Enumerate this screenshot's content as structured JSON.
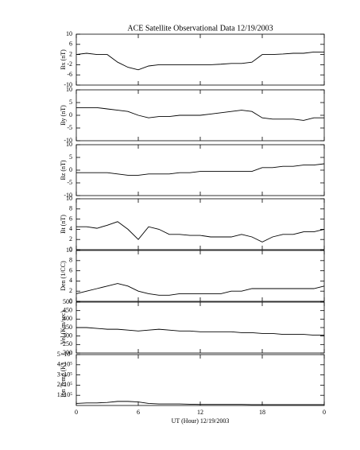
{
  "chart_data": [
    {
      "type": "line",
      "title": "ACE Satellite Observational Data   12/19/2003",
      "ylabel": "Bx (nT)",
      "x": [
        0,
        1,
        2,
        3,
        4,
        5,
        6,
        7,
        8,
        9,
        10,
        11,
        12,
        13,
        14,
        15,
        16,
        17,
        18,
        19,
        20,
        21,
        22,
        23,
        24
      ],
      "series": [
        {
          "color": "#000000",
          "values": [
            2,
            2.5,
            2,
            2,
            -1,
            -3,
            -4,
            -2.5,
            -2,
            -2,
            -2,
            -2,
            -2,
            -2,
            -1.8,
            -1.5,
            -1.5,
            -1,
            2,
            2,
            2.2,
            2.5,
            2.5,
            3,
            3
          ]
        }
      ],
      "ylim": [
        -10,
        10
      ],
      "yticks": [
        10,
        6,
        2,
        -2,
        -6,
        -10
      ],
      "xlim": [
        0,
        24
      ]
    },
    {
      "type": "line",
      "ylabel": "By (nT)",
      "x": [
        0,
        1,
        2,
        3,
        4,
        5,
        6,
        7,
        8,
        9,
        10,
        11,
        12,
        13,
        14,
        15,
        16,
        17,
        18,
        19,
        20,
        21,
        22,
        23,
        24
      ],
      "series": [
        {
          "color": "#000000",
          "values": [
            3,
            3,
            3,
            2.5,
            2,
            1.5,
            0,
            -1,
            -0.5,
            -0.5,
            0,
            0,
            0,
            0.5,
            1,
            1.5,
            2,
            1.5,
            -1,
            -1.5,
            -1.5,
            -1.5,
            -2,
            -1,
            -1
          ]
        }
      ],
      "ylim": [
        -10,
        10
      ],
      "yticks": [
        10,
        5,
        0,
        -5,
        -10
      ],
      "xlim": [
        0,
        24
      ]
    },
    {
      "type": "line",
      "ylabel": "Bz (nT)",
      "x": [
        0,
        1,
        2,
        3,
        4,
        5,
        6,
        7,
        8,
        9,
        10,
        11,
        12,
        13,
        14,
        15,
        16,
        17,
        18,
        19,
        20,
        21,
        22,
        23,
        24
      ],
      "series": [
        {
          "color": "#000000",
          "values": [
            -1,
            -1,
            -1,
            -1,
            -1.5,
            -2,
            -2,
            -1.5,
            -1.5,
            -1.5,
            -1,
            -1,
            -0.5,
            -0.5,
            -0.5,
            -0.5,
            -0.5,
            -0.5,
            1,
            1,
            1.5,
            1.5,
            2,
            2,
            2.5
          ]
        }
      ],
      "ylim": [
        -10,
        10
      ],
      "yticks": [
        10,
        5,
        0,
        -5,
        -10
      ],
      "xlim": [
        0,
        24
      ]
    },
    {
      "type": "line",
      "ylabel": "Bt (nT)",
      "x": [
        0,
        1,
        2,
        3,
        4,
        5,
        6,
        7,
        8,
        9,
        10,
        11,
        12,
        13,
        14,
        15,
        16,
        17,
        18,
        19,
        20,
        21,
        22,
        23,
        24
      ],
      "series": [
        {
          "color": "#000000",
          "values": [
            4.5,
            4.5,
            4.2,
            4.8,
            5.5,
            4,
            2,
            4.5,
            4,
            3,
            3,
            2.8,
            2.8,
            2.5,
            2.5,
            2.5,
            3,
            2.5,
            1.5,
            2.5,
            3,
            3,
            3.5,
            3.5,
            4
          ]
        }
      ],
      "ylim": [
        0,
        10
      ],
      "yticks": [
        10,
        8,
        6,
        4,
        2,
        0
      ],
      "xlim": [
        0,
        24
      ]
    },
    {
      "type": "line",
      "ylabel": "Den (1/CC)",
      "x": [
        0,
        1,
        2,
        3,
        4,
        5,
        6,
        7,
        8,
        9,
        10,
        11,
        12,
        13,
        14,
        15,
        16,
        17,
        18,
        19,
        20,
        21,
        22,
        23,
        24
      ],
      "series": [
        {
          "color": "#000000",
          "values": [
            1.5,
            2,
            2.5,
            3,
            3.5,
            3,
            2,
            1.5,
            1.2,
            1.2,
            1.5,
            1.5,
            1.5,
            1.5,
            1.5,
            2,
            2,
            2.5,
            2.5,
            2.5,
            2.5,
            2.5,
            2.5,
            2.5,
            3
          ]
        }
      ],
      "ylim": [
        0,
        10
      ],
      "yticks": [
        10,
        8,
        6,
        4,
        2,
        0
      ],
      "xlim": [
        0,
        24
      ]
    },
    {
      "type": "line",
      "ylabel": "Vel (Km/sec)",
      "x": [
        0,
        1,
        2,
        3,
        4,
        5,
        6,
        7,
        8,
        9,
        10,
        11,
        12,
        13,
        14,
        15,
        16,
        17,
        18,
        19,
        20,
        21,
        22,
        23,
        24
      ],
      "series": [
        {
          "color": "#000000",
          "values": [
            350,
            350,
            345,
            340,
            340,
            335,
            330,
            335,
            340,
            335,
            330,
            330,
            325,
            325,
            325,
            325,
            320,
            320,
            315,
            315,
            310,
            310,
            310,
            305,
            305
          ]
        }
      ],
      "ylim": [
        200,
        500
      ],
      "yticks": [
        500,
        450,
        400,
        350,
        300,
        250,
        200
      ],
      "xlim": [
        0,
        24
      ]
    },
    {
      "type": "line",
      "ylabel": "Ion Temp (K)",
      "xlabel": "UT (Hour)  12/19/2003",
      "x": [
        0,
        1,
        2,
        3,
        4,
        5,
        6,
        7,
        8,
        9,
        10,
        11,
        12,
        13,
        14,
        15,
        16,
        17,
        18,
        19,
        20,
        21,
        22,
        23,
        24
      ],
      "series": [
        {
          "color": "#000000",
          "values": [
            20000,
            25000,
            25000,
            30000,
            40000,
            40000,
            35000,
            20000,
            15000,
            15000,
            15000,
            12000,
            10000,
            10000,
            10000,
            10000,
            10000,
            8000,
            8000,
            8000,
            8000,
            8000,
            8000,
            8000,
            8000
          ]
        }
      ],
      "ylim": [
        0,
        500000
      ],
      "yticks": [
        {
          "value": 500000,
          "label": "5×10⁵"
        },
        {
          "value": 400000,
          "label": "4×10⁵"
        },
        {
          "value": 300000,
          "label": "3×10⁵"
        },
        {
          "value": 200000,
          "label": "2×10⁵"
        },
        {
          "value": 100000,
          "label": "1×10⁵"
        }
      ],
      "xlim": [
        0,
        24
      ],
      "xticks": [
        0,
        6,
        12,
        18,
        {
          "value": 24,
          "label": "0"
        }
      ]
    }
  ]
}
